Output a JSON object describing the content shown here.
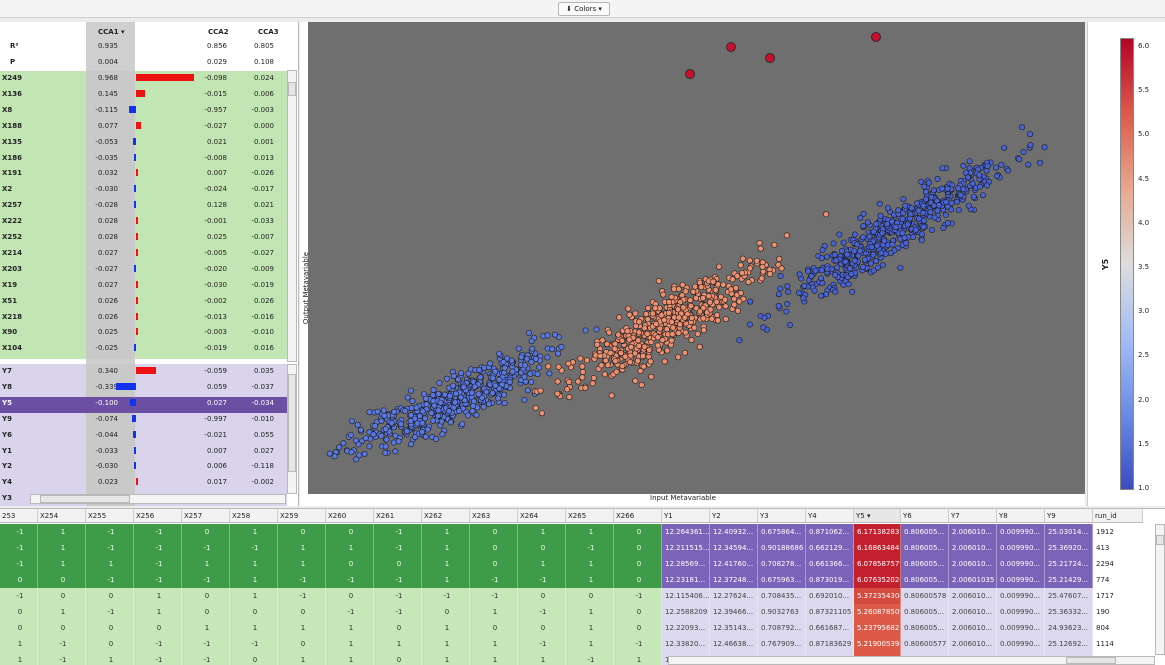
{
  "toolbar": {
    "colors_label": "Colors ▾"
  },
  "cca": {
    "col_headers": [
      "CCA1 ▾",
      "CCA2",
      "CCA3"
    ],
    "stats": [
      {
        "label": "R²",
        "v": [
          "0.935",
          "0.856",
          "0.805"
        ]
      },
      {
        "label": "P",
        "v": [
          "0.004",
          "0.029",
          "0.108"
        ]
      }
    ],
    "x_rows": [
      {
        "label": "X249",
        "v": [
          "0.968",
          "-0.098",
          "0.024"
        ],
        "bar": 0.968
      },
      {
        "label": "X136",
        "v": [
          "0.145",
          "-0.015",
          "0.006"
        ],
        "bar": 0.145
      },
      {
        "label": "X8",
        "v": [
          "-0.115",
          "-0.957",
          "-0.003"
        ],
        "bar": -0.115
      },
      {
        "label": "X188",
        "v": [
          "0.077",
          "-0.027",
          "0.000"
        ],
        "bar": 0.077
      },
      {
        "label": "X135",
        "v": [
          "-0.053",
          "0.021",
          "0.001"
        ],
        "bar": -0.053
      },
      {
        "label": "X186",
        "v": [
          "-0.035",
          "-0.008",
          "0.013"
        ],
        "bar": -0.035
      },
      {
        "label": "X191",
        "v": [
          "0.032",
          "0.007",
          "-0.026"
        ],
        "bar": 0.032
      },
      {
        "label": "X2",
        "v": [
          "-0.030",
          "-0.024",
          "-0.017"
        ],
        "bar": -0.03
      },
      {
        "label": "X257",
        "v": [
          "-0.028",
          "0.128",
          "0.021"
        ],
        "bar": -0.028
      },
      {
        "label": "X222",
        "v": [
          "0.028",
          "-0.001",
          "-0.033"
        ],
        "bar": 0.028
      },
      {
        "label": "X252",
        "v": [
          "0.028",
          "0.025",
          "-0.007"
        ],
        "bar": 0.028
      },
      {
        "label": "X214",
        "v": [
          "0.027",
          "-0.005",
          "-0.027"
        ],
        "bar": 0.027
      },
      {
        "label": "X203",
        "v": [
          "-0.027",
          "-0.020",
          "-0.009"
        ],
        "bar": -0.027
      },
      {
        "label": "X19",
        "v": [
          "0.027",
          "-0.030",
          "-0.019"
        ],
        "bar": 0.027
      },
      {
        "label": "X51",
        "v": [
          "0.026",
          "-0.002",
          "0.026"
        ],
        "bar": 0.026
      },
      {
        "label": "X218",
        "v": [
          "0.026",
          "-0.013",
          "-0.016"
        ],
        "bar": 0.026
      },
      {
        "label": "X90",
        "v": [
          "0.025",
          "-0.003",
          "-0.010"
        ],
        "bar": 0.025
      },
      {
        "label": "X104",
        "v": [
          "-0.025",
          "-0.019",
          "0.016"
        ],
        "bar": -0.025
      }
    ],
    "y_rows": [
      {
        "label": "Y7",
        "v": [
          "0.340",
          "-0.059",
          "0.035"
        ],
        "bar": 0.34
      },
      {
        "label": "Y8",
        "v": [
          "-0.339",
          "0.059",
          "-0.037"
        ],
        "bar": -0.339
      },
      {
        "label": "Y5",
        "v": [
          "-0.100",
          "0.027",
          "-0.034"
        ],
        "bar": -0.1,
        "selected": true
      },
      {
        "label": "Y9",
        "v": [
          "-0.074",
          "-0.997",
          "-0.010"
        ],
        "bar": -0.074
      },
      {
        "label": "Y6",
        "v": [
          "-0.044",
          "-0.021",
          "0.055"
        ],
        "bar": -0.044
      },
      {
        "label": "Y1",
        "v": [
          "-0.033",
          "0.007",
          "0.027"
        ],
        "bar": -0.033
      },
      {
        "label": "Y2",
        "v": [
          "-0.030",
          "0.006",
          "-0.118"
        ],
        "bar": -0.03
      },
      {
        "label": "Y4",
        "v": [
          "0.023",
          "0.017",
          "-0.002"
        ],
        "bar": 0.023
      },
      {
        "label": "Y3",
        "v": [
          "",
          "",
          ""
        ],
        "bar": 0.0
      }
    ]
  },
  "plot": {
    "xlabel": "Input Metavariable",
    "ylabel": "Output Metavariable",
    "colorbar_label": "Y5",
    "colorbar_ticks": [
      "6.0",
      "5.5",
      "5.0",
      "4.5",
      "4.0",
      "3.5",
      "3.0",
      "2.5",
      "2.0",
      "1.5",
      "1.0"
    ],
    "colors": {
      "low": "#3b4cc0",
      "mid": "#dddddd",
      "high": "#b40426",
      "bg": "#6e6e6e"
    }
  },
  "table": {
    "columns": [
      "253",
      "X254",
      "X255",
      "X256",
      "X257",
      "X258",
      "X259",
      "X260",
      "X261",
      "X262",
      "X263",
      "X264",
      "X265",
      "X266",
      "Y1",
      "Y2",
      "Y3",
      "Y4",
      "Y5 ▾",
      "Y6",
      "Y7",
      "Y8",
      "Y9",
      "run_id"
    ],
    "rows": [
      {
        "sel": true,
        "cells": [
          "-1",
          "1",
          "-1",
          "-1",
          "0",
          "1",
          "0",
          "0",
          "-1",
          "1",
          "0",
          "1",
          "1",
          "0",
          "12.264361...",
          "12.40932...",
          "0.675864...",
          "0.871062...",
          "6.171382837",
          "0.806005...",
          "2.006010...",
          "0.009990...",
          "25.03014...",
          "1912"
        ]
      },
      {
        "sel": true,
        "cells": [
          "-1",
          "1",
          "-1",
          "-1",
          "-1",
          "-1",
          "1",
          "1",
          "-1",
          "1",
          "0",
          "0",
          "-1",
          "0",
          "12.211515...",
          "12.34594...",
          "0.90188686",
          "0.662129...",
          "6.168634847",
          "0.806005...",
          "2.006010...",
          "0.009990...",
          "25.36920...",
          "413"
        ]
      },
      {
        "sel": true,
        "cells": [
          "-1",
          "1",
          "1",
          "-1",
          "1",
          "1",
          "1",
          "0",
          "0",
          "1",
          "0",
          "1",
          "1",
          "0",
          "12.28569...",
          "12.41760...",
          "0.708278...",
          "0.661366...",
          "6.078587579",
          "0.806005...",
          "2.006010...",
          "0.009990...",
          "25.21724...",
          "2294"
        ]
      },
      {
        "sel": true,
        "cells": [
          "0",
          "0",
          "-1",
          "-1",
          "-1",
          "1",
          "-1",
          "-1",
          "-1",
          "1",
          "-1",
          "-1",
          "1",
          "0",
          "12.23181...",
          "12.37248...",
          "0.675963...",
          "0.873019...",
          "6.076352026",
          "0.806005...",
          "2.00601035",
          "0.009990...",
          "25.21429...",
          "774"
        ]
      },
      {
        "sel": false,
        "cells": [
          "-1",
          "0",
          "0",
          "1",
          "0",
          "1",
          "-1",
          "0",
          "-1",
          "-1",
          "-1",
          "0",
          "0",
          "-1",
          "12.115406...",
          "12.27624...",
          "0.708435...",
          "0.692010...",
          "5.372354308",
          "0.80600578",
          "2.006010...",
          "0.009990...",
          "25.47607...",
          "1717"
        ]
      },
      {
        "sel": false,
        "cells": [
          "0",
          "1",
          "-1",
          "1",
          "0",
          "0",
          "0",
          "-1",
          "-1",
          "0",
          "1",
          "-1",
          "1",
          "0",
          "12.2588209",
          "12.39466...",
          "0.9032763",
          "0.87321105",
          "5.260878509",
          "0.806005...",
          "2.006010...",
          "0.009990...",
          "25.36332...",
          "190"
        ]
      },
      {
        "sel": false,
        "cells": [
          "0",
          "0",
          "0",
          "0",
          "1",
          "1",
          "1",
          "1",
          "0",
          "1",
          "0",
          "0",
          "1",
          "0",
          "12.22093...",
          "12.35143...",
          "0.708792...",
          "0.661687...",
          "5.23795682",
          "0.806005...",
          "2.006010...",
          "0.009990...",
          "24.93623...",
          "804"
        ]
      },
      {
        "sel": false,
        "cells": [
          "1",
          "-1",
          "0",
          "-1",
          "-1",
          "-1",
          "0",
          "1",
          "1",
          "1",
          "1",
          "-1",
          "1",
          "-1",
          "12.33820...",
          "12.46638...",
          "0.767909...",
          "0.87183629",
          "5.219005398",
          "0.80600577",
          "2.006010...",
          "0.009990...",
          "25.12692...",
          "1114"
        ]
      },
      {
        "sel": false,
        "cells": [
          "1",
          "-1",
          "1",
          "-1",
          "-1",
          "0",
          "1",
          "1",
          "0",
          "1",
          "1",
          "1",
          "-1",
          "1",
          "12.3601627",
          "12.48742...",
          "0.902678...",
          "0.691396...",
          "5.206360306",
          "0.806005...",
          "2.006010...",
          "0.009990...",
          "25.15972...",
          "72"
        ]
      }
    ]
  }
}
